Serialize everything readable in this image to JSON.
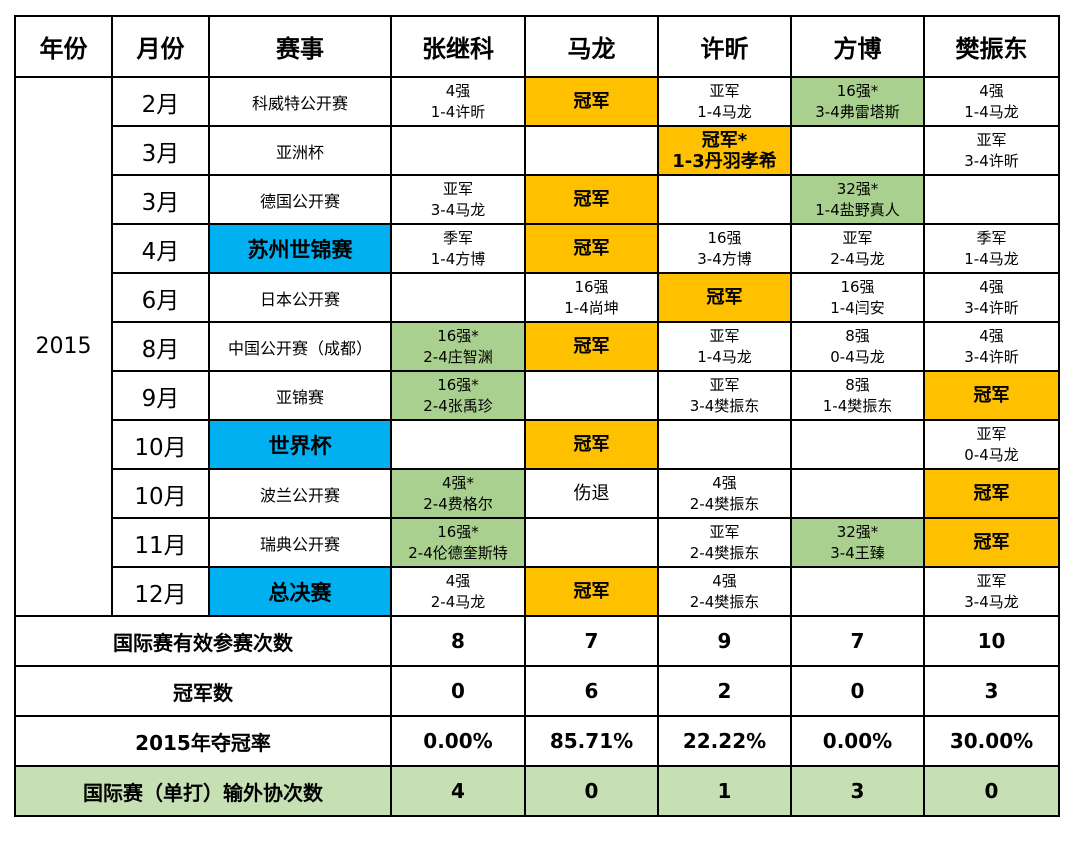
{
  "headers": [
    "年份",
    "月份",
    "赛事",
    "张继科",
    "马龙",
    "许昕",
    "方博",
    "樊振东"
  ],
  "year": "2015",
  "rows": [
    {
      "month": "2月",
      "event": "科威特公开赛",
      "major": false,
      "cells": [
        {
          "type": "plain",
          "l1": "4强",
          "l2": "1-4许昕"
        },
        {
          "type": "champ",
          "l1": "冠军",
          "l2": ""
        },
        {
          "type": "plain",
          "l1": "亚军",
          "l2": "1-4马龙"
        },
        {
          "type": "green",
          "l1": "16强*",
          "l2": "3-4弗雷塔斯"
        },
        {
          "type": "plain",
          "l1": "4强",
          "l2": "1-4马龙"
        }
      ]
    },
    {
      "month": "3月",
      "event": "亚洲杯",
      "major": false,
      "cells": [
        {
          "type": "empty",
          "l1": "",
          "l2": ""
        },
        {
          "type": "empty",
          "l1": "",
          "l2": ""
        },
        {
          "type": "champ",
          "l1": "冠军*",
          "l2": "1-3丹羽孝希"
        },
        {
          "type": "empty",
          "l1": "",
          "l2": ""
        },
        {
          "type": "plain",
          "l1": "亚军",
          "l2": "3-4许昕"
        }
      ]
    },
    {
      "month": "3月",
      "event": "德国公开赛",
      "major": false,
      "cells": [
        {
          "type": "plain",
          "l1": "亚军",
          "l2": "3-4马龙"
        },
        {
          "type": "champ",
          "l1": "冠军",
          "l2": ""
        },
        {
          "type": "empty",
          "l1": "",
          "l2": ""
        },
        {
          "type": "green",
          "l1": "32强*",
          "l2": "1-4盐野真人"
        },
        {
          "type": "empty",
          "l1": "",
          "l2": ""
        }
      ]
    },
    {
      "month": "4月",
      "event": "苏州世锦赛",
      "major": true,
      "cells": [
        {
          "type": "plain",
          "l1": "季军",
          "l2": "1-4方博"
        },
        {
          "type": "champ",
          "l1": "冠军",
          "l2": ""
        },
        {
          "type": "plain",
          "l1": "16强",
          "l2": "3-4方博"
        },
        {
          "type": "plain",
          "l1": "亚军",
          "l2": "2-4马龙"
        },
        {
          "type": "plain",
          "l1": "季军",
          "l2": "1-4马龙"
        }
      ]
    },
    {
      "month": "6月",
      "event": "日本公开赛",
      "major": false,
      "cells": [
        {
          "type": "empty",
          "l1": "",
          "l2": ""
        },
        {
          "type": "plain",
          "l1": "16强",
          "l2": "1-4尚坤"
        },
        {
          "type": "champ",
          "l1": "冠军",
          "l2": ""
        },
        {
          "type": "plain",
          "l1": "16强",
          "l2": "1-4闫安"
        },
        {
          "type": "plain",
          "l1": "4强",
          "l2": "3-4许昕"
        }
      ]
    },
    {
      "month": "8月",
      "event": "中国公开赛（成都）",
      "major": false,
      "cells": [
        {
          "type": "green",
          "l1": "16强*",
          "l2": "2-4庄智渊"
        },
        {
          "type": "champ",
          "l1": "冠军",
          "l2": ""
        },
        {
          "type": "plain",
          "l1": "亚军",
          "l2": "1-4马龙"
        },
        {
          "type": "plain",
          "l1": "8强",
          "l2": "0-4马龙"
        },
        {
          "type": "plain",
          "l1": "4强",
          "l2": "3-4许昕"
        }
      ]
    },
    {
      "month": "9月",
      "event": "亚锦赛",
      "major": false,
      "cells": [
        {
          "type": "green",
          "l1": "16强*",
          "l2": "2-4张禹珍"
        },
        {
          "type": "empty",
          "l1": "",
          "l2": ""
        },
        {
          "type": "plain",
          "l1": "亚军",
          "l2": "3-4樊振东"
        },
        {
          "type": "plain",
          "l1": "8强",
          "l2": "1-4樊振东"
        },
        {
          "type": "champ",
          "l1": "冠军",
          "l2": ""
        }
      ]
    },
    {
      "month": "10月",
      "event": "世界杯",
      "major": true,
      "cells": [
        {
          "type": "empty",
          "l1": "",
          "l2": ""
        },
        {
          "type": "champ",
          "l1": "冠军",
          "l2": ""
        },
        {
          "type": "empty",
          "l1": "",
          "l2": ""
        },
        {
          "type": "empty",
          "l1": "",
          "l2": ""
        },
        {
          "type": "plain",
          "l1": "亚军",
          "l2": "0-4马龙"
        }
      ]
    },
    {
      "month": "10月",
      "event": "波兰公开赛",
      "major": false,
      "cells": [
        {
          "type": "green",
          "l1": "4强*",
          "l2": "2-4费格尔"
        },
        {
          "type": "single",
          "l1": "伤退",
          "l2": ""
        },
        {
          "type": "plain",
          "l1": "4强",
          "l2": "2-4樊振东"
        },
        {
          "type": "empty",
          "l1": "",
          "l2": ""
        },
        {
          "type": "champ",
          "l1": "冠军",
          "l2": ""
        }
      ]
    },
    {
      "month": "11月",
      "event": "瑞典公开赛",
      "major": false,
      "cells": [
        {
          "type": "green",
          "l1": "16强*",
          "l2": "2-4伦德奎斯特"
        },
        {
          "type": "empty",
          "l1": "",
          "l2": ""
        },
        {
          "type": "plain",
          "l1": "亚军",
          "l2": "2-4樊振东"
        },
        {
          "type": "green",
          "l1": "32强*",
          "l2": "3-4王臻"
        },
        {
          "type": "champ",
          "l1": "冠军",
          "l2": ""
        }
      ]
    },
    {
      "month": "12月",
      "event": "总决赛",
      "major": true,
      "cells": [
        {
          "type": "plain",
          "l1": "4强",
          "l2": "2-4马龙"
        },
        {
          "type": "champ",
          "l1": "冠军",
          "l2": ""
        },
        {
          "type": "plain",
          "l1": "4强",
          "l2": "2-4樊振东"
        },
        {
          "type": "empty",
          "l1": "",
          "l2": ""
        },
        {
          "type": "plain",
          "l1": "亚军",
          "l2": "3-4马龙"
        }
      ]
    }
  ],
  "summary": [
    {
      "label": "国际赛有效参赛次数",
      "values": [
        "8",
        "7",
        "9",
        "7",
        "10"
      ],
      "highlight": false
    },
    {
      "label": "冠军数",
      "values": [
        "0",
        "6",
        "2",
        "0",
        "3"
      ],
      "highlight": false
    },
    {
      "label": "2015年夺冠率",
      "values": [
        "0.00%",
        "85.71%",
        "22.22%",
        "0.00%",
        "30.00%"
      ],
      "highlight": false
    },
    {
      "label": "国际赛（单打）输外协次数",
      "values": [
        "4",
        "0",
        "1",
        "3",
        "0"
      ],
      "highlight": true
    }
  ],
  "colors": {
    "champion": "#ffc000",
    "loss_to_foreign": "#a9d08e",
    "major_event": "#00b0f0",
    "summary_highlight": "#c6e0b4"
  }
}
